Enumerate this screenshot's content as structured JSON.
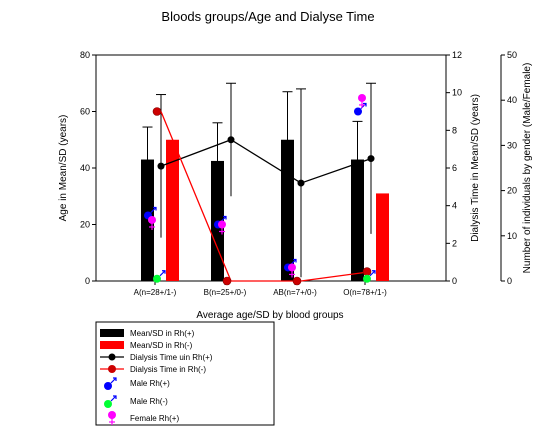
{
  "chart_data": {
    "type": "bar",
    "title": "Bloods groups/Age and Dialyse Time",
    "xlabel": "Average age/SD by blood groups",
    "ylabel": "Age in Mean/SD (years)",
    "ylabel_right": "Dialysis Time in Mean/SD (years)",
    "ylabel_right2": "Number of individuals by gender (Male/Female)",
    "ylim": [
      0,
      80
    ],
    "ylim_right": [
      0,
      12
    ],
    "ylim_right2": [
      0,
      50
    ],
    "yticks": [
      0,
      20,
      40,
      60,
      80
    ],
    "yticks_right": [
      0,
      2,
      4,
      6,
      8,
      10,
      12
    ],
    "yticks_right2": [
      0,
      10,
      20,
      30,
      40,
      50
    ],
    "categories": [
      "A(n=28+/1-)",
      "B(n=25+/0-)",
      "AB(n=7+/0-)",
      "O(n=78+/1-)"
    ],
    "colors": {
      "rh_pos": "#000000",
      "rh_neg": "#ff0000",
      "male_pos": "#0000ff",
      "male_neg": "#00ff33",
      "female_pos": "#ff00ff",
      "gender_sign_male": "#0000ff",
      "gender_sign_female": "#ff00ff"
    },
    "series": [
      {
        "name": "Mean/SD in Rh(+)",
        "axis": "left",
        "kind": "bar",
        "values": [
          43,
          42.5,
          50,
          43
        ],
        "sd": [
          11.5,
          13.5,
          17,
          13.5
        ]
      },
      {
        "name": "Mean/SD in Rh(-)",
        "axis": "left",
        "kind": "bar",
        "values": [
          50,
          0,
          0,
          31
        ],
        "sd": [
          0,
          0,
          0,
          0
        ]
      },
      {
        "name": "Dialysis Time uin Rh(+)",
        "axis": "right",
        "kind": "line",
        "values": [
          6.1,
          7.5,
          5.2,
          6.5
        ],
        "sd": [
          3.8,
          3,
          5,
          4
        ]
      },
      {
        "name": "Dialysis Time in Rh(-)",
        "axis": "right",
        "kind": "line",
        "values": [
          9,
          0,
          0,
          0.5
        ]
      },
      {
        "name": "Male Rh(+)",
        "axis": "right2",
        "kind": "marker",
        "values": [
          14.5,
          12.5,
          3,
          37.5
        ]
      },
      {
        "name": "Male Rh(-)",
        "axis": "right2",
        "kind": "marker",
        "values": [
          0.5,
          0,
          0,
          0.5
        ]
      },
      {
        "name": "Female Rh(+)",
        "axis": "right2",
        "kind": "marker",
        "values": [
          13.5,
          12.5,
          3,
          40.5
        ]
      }
    ],
    "legend_position": "bottom-left"
  }
}
